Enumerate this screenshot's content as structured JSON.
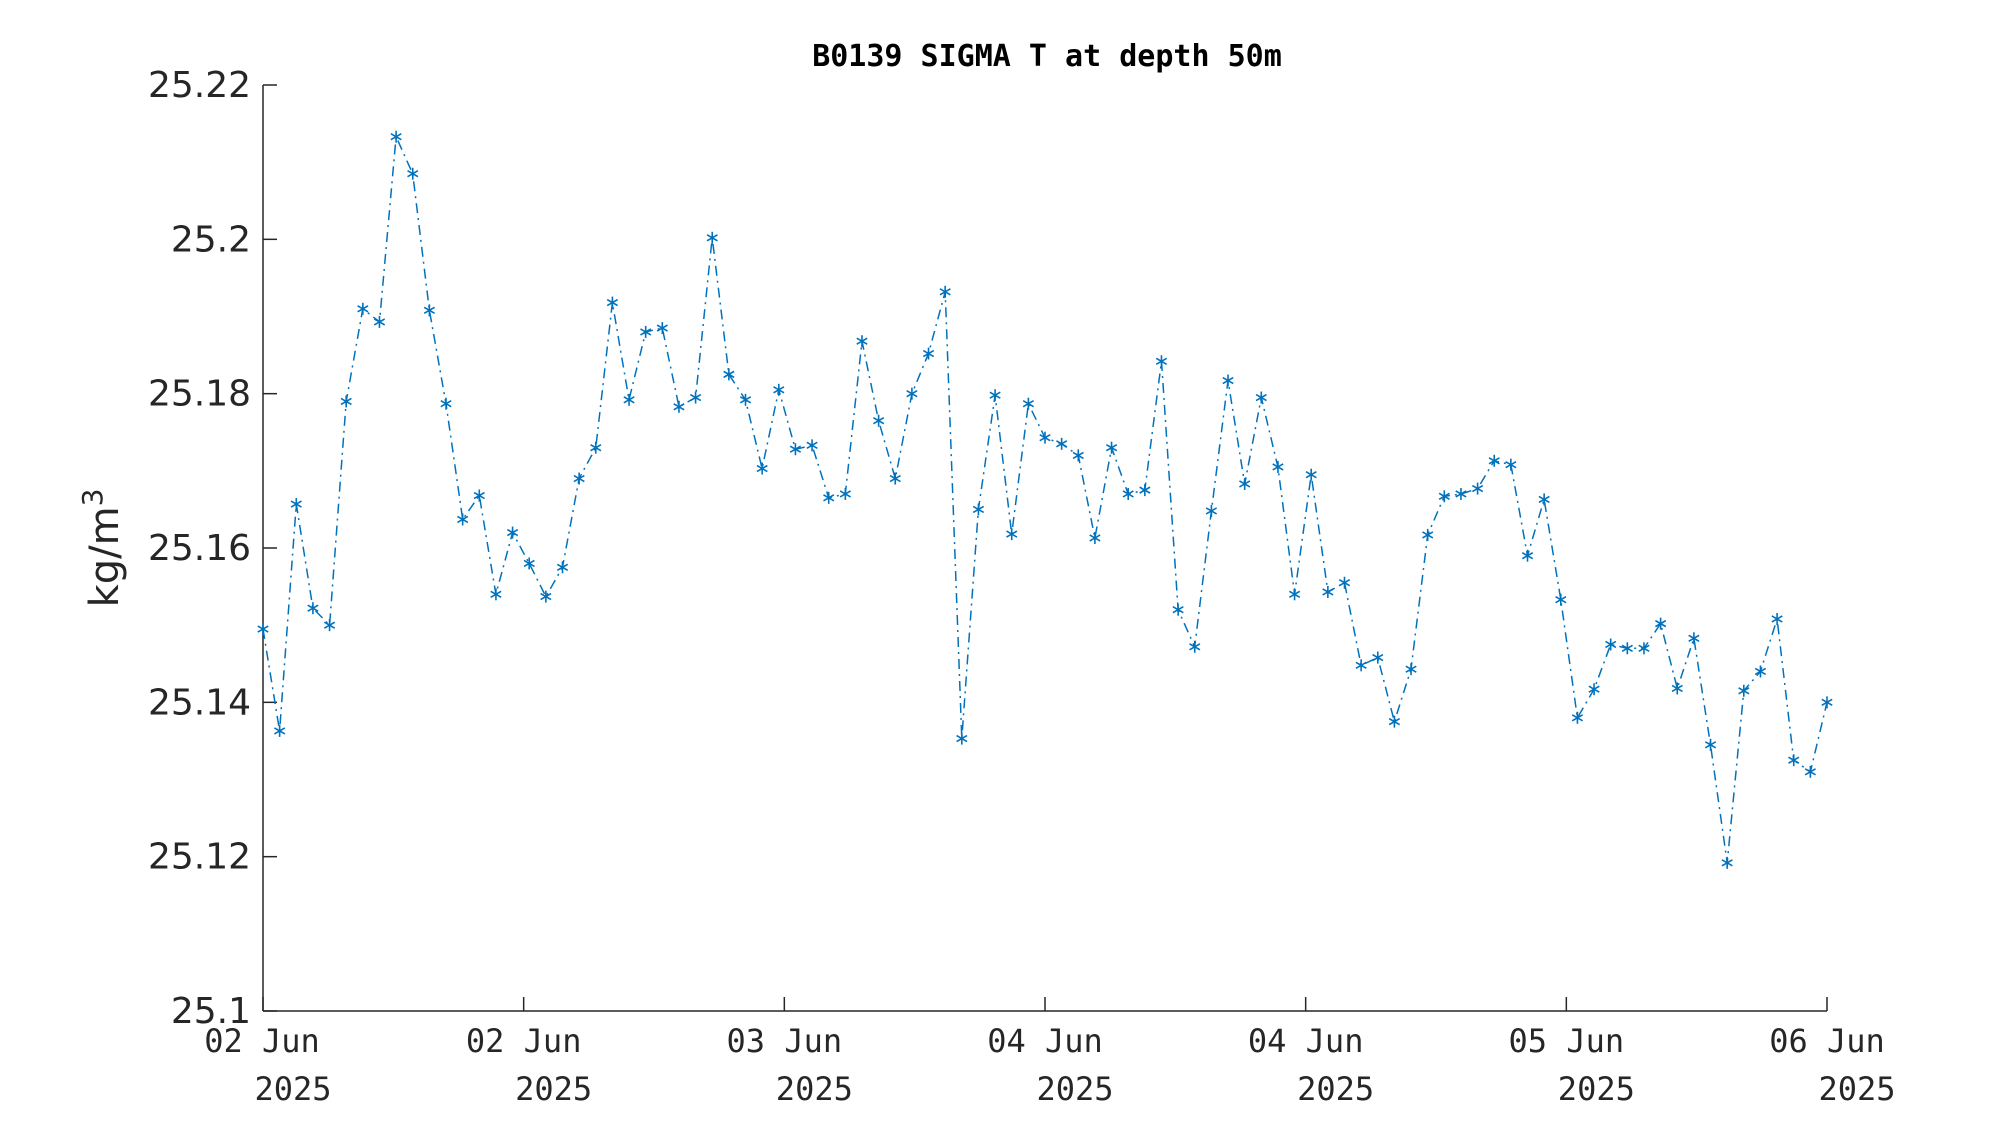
{
  "chart_data": {
    "type": "line",
    "title": "B0139 SIGMA T at depth 50m",
    "ylabel": "kg/m",
    "ylabel_superscript": "3",
    "ylim": [
      25.1,
      25.22
    ],
    "yticks": [
      "25.1",
      "25.12",
      "25.14",
      "25.16",
      "25.18",
      "25.2",
      "25.22"
    ],
    "xticks": [
      {
        "line1": "02 Jun",
        "line2": "2025"
      },
      {
        "line1": "02 Jun",
        "line2": "2025"
      },
      {
        "line1": "03 Jun",
        "line2": "2025"
      },
      {
        "line1": "04 Jun",
        "line2": "2025"
      },
      {
        "line1": "04 Jun",
        "line2": "2025"
      },
      {
        "line1": "05 Jun",
        "line2": "2025"
      },
      {
        "line1": "06 Jun",
        "line2": "2025"
      }
    ],
    "marker": "asterisk",
    "line_style": "dash-dot",
    "color": "#0072BD",
    "series": [
      {
        "values": [
          25.1495,
          25.1363,
          25.1657,
          25.1522,
          25.15,
          25.179,
          25.191,
          25.1893,
          25.2133,
          25.2085,
          25.1908,
          25.1787,
          25.1637,
          25.1668,
          25.154,
          25.162,
          25.158,
          25.1537,
          25.1575,
          25.169,
          25.173,
          25.1918,
          25.1792,
          25.188,
          25.1885,
          25.1783,
          25.1795,
          25.2002,
          25.1825,
          25.1792,
          25.1703,
          25.1805,
          25.1728,
          25.1733,
          25.1665,
          25.167,
          25.1868,
          25.1765,
          25.169,
          25.18,
          25.1852,
          25.1932,
          25.1353,
          25.165,
          25.1798,
          25.1618,
          25.1787,
          25.1743,
          25.1735,
          25.172,
          25.1613,
          25.173,
          25.167,
          25.1675,
          25.1842,
          25.152,
          25.1472,
          25.1648,
          25.1817,
          25.1683,
          25.1795,
          25.1705,
          25.154,
          25.1695,
          25.1543,
          25.1555,
          25.1448,
          25.1458,
          25.1375,
          25.1443,
          25.1617,
          25.1667,
          25.167,
          25.1677,
          25.1713,
          25.1708,
          25.159,
          25.1663,
          25.1533,
          25.138,
          25.1417,
          25.1475,
          25.147,
          25.147,
          25.1502,
          25.1418,
          25.1483,
          25.1345,
          25.1192,
          25.1415,
          25.144,
          25.1508,
          25.1325,
          25.131,
          25.14
        ]
      }
    ]
  }
}
